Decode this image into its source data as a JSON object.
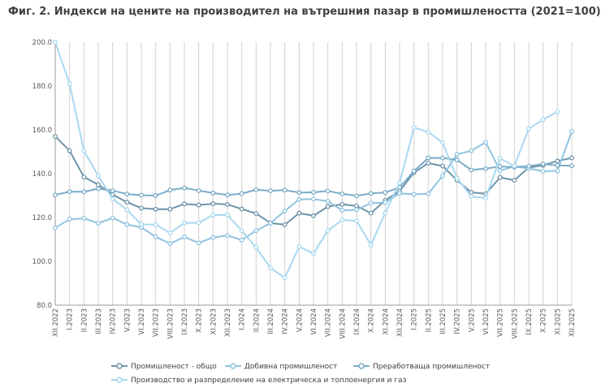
{
  "chart_data": {
    "type": "line",
    "title": "Фиг. 2. Индекси на цените на производител на вътрешния пазар  в промишлеността (2021=100)",
    "ylim": [
      80,
      200
    ],
    "yticks": [
      "80.0",
      "100.0",
      "120.0",
      "140.0",
      "160.0",
      "180.0",
      "200.0"
    ],
    "grid": "vertical",
    "legend_position": "bottom",
    "categories": [
      "XII.2022",
      "I.2023",
      "II.2023",
      "III.2023",
      "IV.2023",
      "V.2023",
      "VI.2023",
      "VII.2023",
      "VIII.2023",
      "IX.2023",
      "X.2023",
      "XI.2023",
      "XII.2023",
      "I.2024",
      "II.2024",
      "III.2024",
      "IV.2024",
      "V.2024",
      "VI.2024",
      "VII.2024",
      "VIII.2024",
      "IX.2024",
      "X.2024",
      "XI.2024",
      "XII.2024",
      "I.2025",
      "II.2025",
      "III.2025",
      "IV.2025",
      "V.2025",
      "VI.2025",
      "VII.2025",
      "VIII.2025",
      "IX.2025",
      "X.2025",
      "XI.2025",
      "XII.2025"
    ],
    "series": [
      {
        "name": "Промишленост - общо",
        "color": "#6f94aa",
        "values": [
          157,
          150.5,
          138.5,
          135,
          130.5,
          127,
          124.3,
          123.8,
          123.8,
          126.2,
          125.7,
          126.3,
          126,
          123.9,
          121.8,
          117.5,
          116.7,
          122,
          120.8,
          125,
          126,
          125.3,
          122,
          127.8,
          132,
          140.5,
          144.8,
          143.5,
          137,
          131.5,
          130.8,
          138.3,
          137,
          142.8,
          143.8,
          145.8,
          147.2
        ]
      },
      {
        "name": "Добивна промишленост",
        "color": "#90c3df",
        "values": [
          115.3,
          119.2,
          119.6,
          117.4,
          119.8,
          116.8,
          115.5,
          111.2,
          108.1,
          111.1,
          108.4,
          110.9,
          111.8,
          109.7,
          114,
          117.4,
          123,
          128.3,
          128.4,
          127.4,
          123.3,
          123.5,
          126.6,
          126.8,
          131,
          130.6,
          130.8,
          139,
          148.8,
          150.5,
          154.3,
          141.4,
          143.3,
          142.4,
          141.1,
          141.3,
          159.2
        ]
      },
      {
        "name": "Преработваща промишленост",
        "color": "#7aabc8",
        "values": [
          130.3,
          131.8,
          131.7,
          133.2,
          132.3,
          130.7,
          130.2,
          130,
          132.5,
          133.5,
          132.3,
          131.2,
          130.3,
          130.9,
          132.7,
          132.2,
          132.5,
          131.4,
          131.5,
          132.1,
          130.8,
          129.9,
          131,
          131.4,
          133.7,
          141.2,
          147.2,
          147.2,
          146.3,
          141.7,
          142.3,
          143.3,
          143,
          143.4,
          144.4,
          143.8,
          143.6
        ]
      },
      {
        "name": "Производство и разпределение на електрическа и топлоенергия и газ",
        "color": "#a8d8ef",
        "values": [
          200,
          181,
          150.5,
          139,
          128.5,
          123.5,
          116.9,
          116.7,
          113,
          117.5,
          117.6,
          121.1,
          121.2,
          114,
          106.3,
          97,
          92.5,
          106.7,
          103.6,
          114,
          118.9,
          118.5,
          107.5,
          122,
          135.8,
          161,
          159,
          154.2,
          138,
          129.6,
          128.9,
          147,
          143.5,
          160.5,
          164.7,
          168.2,
          null
        ]
      }
    ]
  }
}
